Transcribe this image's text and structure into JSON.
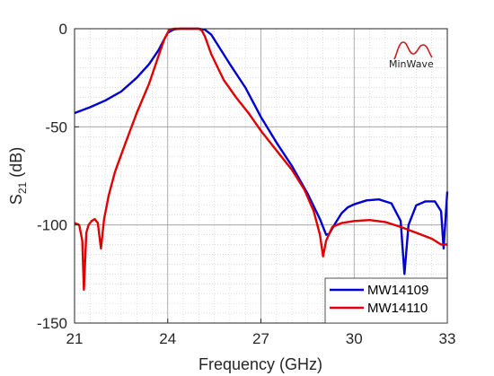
{
  "chart_data": {
    "type": "line",
    "title": "",
    "xlabel": "Frequency (GHz)",
    "ylabel_main": "S",
    "ylabel_sub": "21",
    "ylabel_unit": " (dB)",
    "xlim": [
      21,
      33
    ],
    "ylim": [
      -150,
      0
    ],
    "xticks": [
      21,
      24,
      27,
      30,
      33
    ],
    "xtick_labels": [
      "21",
      "24",
      "27",
      "30",
      "33"
    ],
    "yticks": [
      0,
      -50,
      -100,
      -150
    ],
    "ytick_labels": [
      "0",
      "-50",
      "-100",
      "-150"
    ],
    "grid": true,
    "minor_grid": true,
    "legend_position": "bottom-right",
    "logo_text": "MinWave",
    "series": [
      {
        "name": "MW14109",
        "color": "#0000d0",
        "x": [
          21.0,
          21.5,
          22.0,
          22.5,
          23.0,
          23.4,
          23.7,
          23.9,
          24.0,
          24.2,
          24.4,
          24.6,
          24.8,
          25.0,
          25.2,
          25.4,
          25.6,
          26.0,
          26.5,
          27.0,
          27.5,
          28.0,
          28.5,
          28.9,
          29.1,
          29.2,
          29.4,
          29.6,
          29.8,
          30.0,
          30.4,
          30.8,
          31.2,
          31.5,
          31.62,
          31.75,
          32.0,
          32.3,
          32.6,
          32.8,
          32.88,
          32.95,
          33.0
        ],
        "y": [
          -43,
          -40,
          -36.5,
          -32,
          -25,
          -18,
          -11,
          -5,
          -2,
          -0.3,
          0,
          0,
          0,
          0,
          -0.5,
          -3,
          -8,
          -18,
          -30,
          -45,
          -58,
          -70,
          -84,
          -97,
          -105,
          -104.5,
          -99,
          -94,
          -91,
          -89.5,
          -87.5,
          -87,
          -89,
          -98,
          -125,
          -100,
          -90,
          -88,
          -88,
          -93,
          -112,
          -95,
          -83
        ]
      },
      {
        "name": "MW14110",
        "color": "#e00000",
        "x": [
          21.0,
          21.15,
          21.25,
          21.3,
          21.38,
          21.45,
          21.55,
          21.65,
          21.75,
          21.85,
          21.95,
          22.1,
          22.3,
          22.6,
          23.0,
          23.4,
          23.7,
          23.9,
          24.05,
          24.2,
          24.4,
          24.6,
          24.8,
          25.0,
          25.1,
          25.2,
          25.4,
          25.8,
          26.2,
          26.6,
          27.0,
          27.5,
          28.0,
          28.4,
          28.7,
          28.9,
          29.0,
          29.1,
          29.3,
          29.6,
          30.0,
          30.5,
          31.0,
          31.5,
          32.0,
          32.5,
          32.8,
          33.0
        ],
        "y": [
          -99,
          -100,
          -108,
          -133,
          -104,
          -100,
          -98,
          -97,
          -99,
          -112,
          -97,
          -85,
          -73,
          -60,
          -43,
          -28,
          -14,
          -5,
          -0.5,
          0,
          0,
          0,
          0,
          0,
          -1,
          -4,
          -13,
          -26,
          -35,
          -43,
          -52,
          -62,
          -72,
          -82,
          -93,
          -105,
          -116,
          -108,
          -101,
          -99,
          -98,
          -97.5,
          -98.5,
          -101,
          -104,
          -107,
          -110,
          -110
        ]
      }
    ]
  }
}
